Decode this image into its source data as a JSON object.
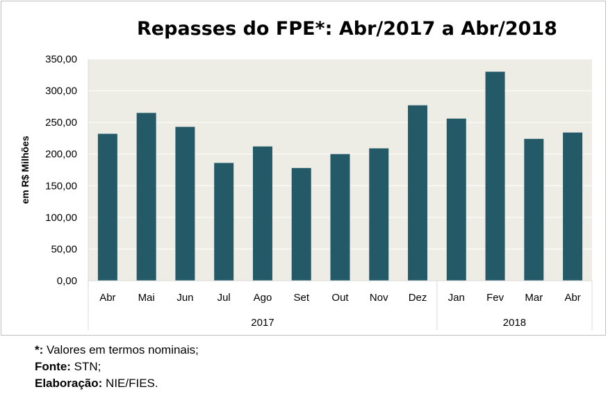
{
  "chart_data": {
    "type": "bar",
    "title": "Repasses do FPE*: Abr/2017 a Abr/2018",
    "ylabel": "em R$ Milhões",
    "xlabel": "",
    "ylim": [
      0,
      350
    ],
    "yticks": [
      "0,00",
      "50,00",
      "100,00",
      "150,00",
      "200,00",
      "250,00",
      "300,00",
      "350,00"
    ],
    "categories": [
      "Abr",
      "Mai",
      "Jun",
      "Jul",
      "Ago",
      "Set",
      "Out",
      "Nov",
      "Dez",
      "Jan",
      "Fev",
      "Mar",
      "Abr"
    ],
    "groups": [
      {
        "label": "2017",
        "count": 9
      },
      {
        "label": "2018",
        "count": 4
      }
    ],
    "values": [
      232,
      265,
      243,
      186,
      212,
      178,
      200,
      209,
      277,
      256,
      330,
      224,
      234
    ],
    "bar_color": "#245a67",
    "plot_background": "#eeede5",
    "gridline_color": "#ffffff",
    "grid": true,
    "legend": "none"
  },
  "notes": [
    {
      "bold": "*:",
      "text": " Valores em termos nominais;"
    },
    {
      "bold": "Fonte:",
      "text": " STN;"
    },
    {
      "bold": "Elaboração:",
      "text": " NIE/FIES."
    }
  ]
}
